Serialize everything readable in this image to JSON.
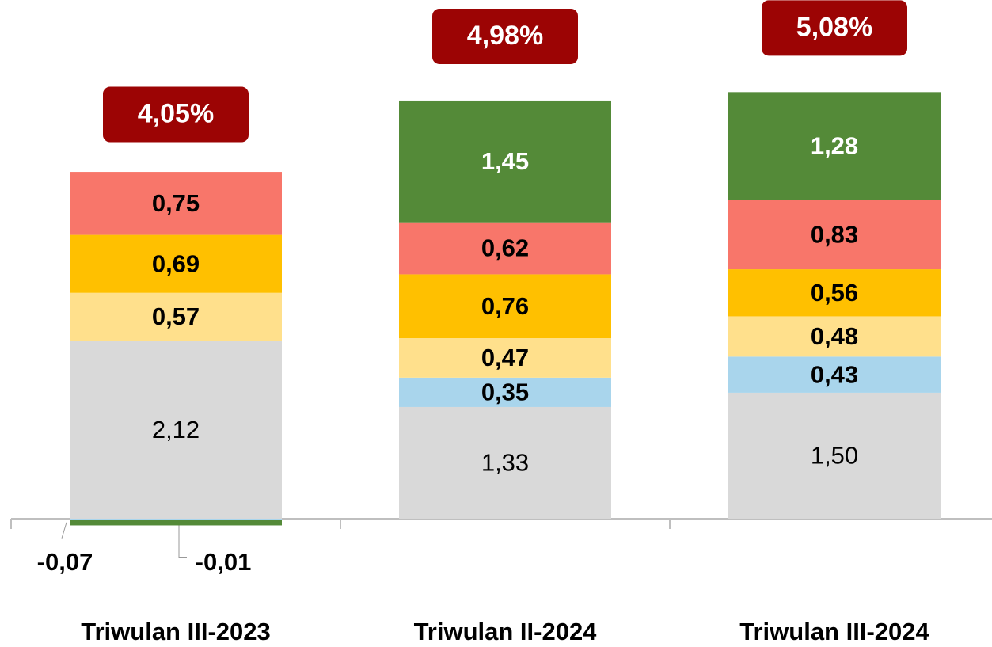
{
  "chart_data": {
    "type": "stacked_bar",
    "categories": [
      "Triwulan III-2023",
      "Triwulan II-2024",
      "Triwulan III-2024"
    ],
    "series": [
      {
        "color": "#d9d9d9",
        "values": [
          2.12,
          1.33,
          1.5
        ],
        "value_labels": [
          "2,12",
          "1,33",
          "1,50"
        ]
      },
      {
        "color": "#a9d5ec",
        "values": [
          -0.01,
          0.35,
          0.43
        ],
        "value_labels": [
          "-0,01",
          "0,35",
          "0,43"
        ]
      },
      {
        "color": "#ffe08c",
        "values": [
          0.57,
          0.47,
          0.48
        ],
        "value_labels": [
          "0,57",
          "0,47",
          "0,48"
        ]
      },
      {
        "color": "#ffc000",
        "values": [
          0.69,
          0.76,
          0.56
        ],
        "value_labels": [
          "0,69",
          "0,76",
          "0,56"
        ]
      },
      {
        "color": "#f8766a",
        "values": [
          0.75,
          0.62,
          0.83
        ],
        "value_labels": [
          "0,75",
          "0,62",
          "0,83"
        ]
      },
      {
        "color": "#548a38",
        "values": [
          -0.07,
          1.45,
          1.28
        ],
        "value_labels": [
          "-0,07",
          "1,45",
          "1,28"
        ]
      }
    ],
    "totals": [
      4.05,
      4.98,
      5.08
    ],
    "total_labels": [
      "4,05%",
      "4,98%",
      "5,08%"
    ],
    "total_color": "#9c0404",
    "ylim": [
      -0.5,
      5.8
    ]
  }
}
